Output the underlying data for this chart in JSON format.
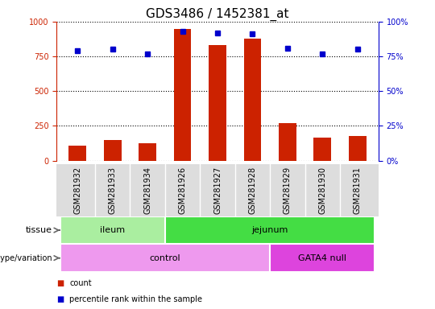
{
  "title": "GDS3486 / 1452381_at",
  "samples": [
    "GSM281932",
    "GSM281933",
    "GSM281934",
    "GSM281926",
    "GSM281927",
    "GSM281928",
    "GSM281929",
    "GSM281930",
    "GSM281931"
  ],
  "counts": [
    110,
    150,
    125,
    950,
    830,
    880,
    270,
    165,
    175
  ],
  "percentile_ranks": [
    79,
    80,
    77,
    93,
    92,
    91,
    81,
    77,
    80
  ],
  "tissue_groups": [
    {
      "label": "ileum",
      "start": 0,
      "end": 3,
      "color": "#AAEEA0"
    },
    {
      "label": "jejunum",
      "start": 3,
      "end": 9,
      "color": "#44DD44"
    }
  ],
  "genotype_groups": [
    {
      "label": "control",
      "start": 0,
      "end": 6,
      "color": "#EE99EE"
    },
    {
      "label": "GATA4 null",
      "start": 6,
      "end": 9,
      "color": "#DD44DD"
    }
  ],
  "left_yaxis_color": "#CC2200",
  "right_yaxis_color": "#0000CC",
  "bar_color": "#CC2200",
  "dot_color": "#0000CC",
  "ylim_left": [
    0,
    1000
  ],
  "ylim_right": [
    0,
    100
  ],
  "yticks_left": [
    0,
    250,
    500,
    750,
    1000
  ],
  "yticks_right": [
    0,
    25,
    50,
    75,
    100
  ],
  "background_color": "#ffffff",
  "title_fontsize": 11,
  "tick_fontsize": 7,
  "label_fontsize": 8,
  "xticklabel_bg": "#DDDDDD",
  "legend_items": [
    {
      "color": "#CC2200",
      "label": "count"
    },
    {
      "color": "#0000CC",
      "label": "percentile rank within the sample"
    }
  ]
}
